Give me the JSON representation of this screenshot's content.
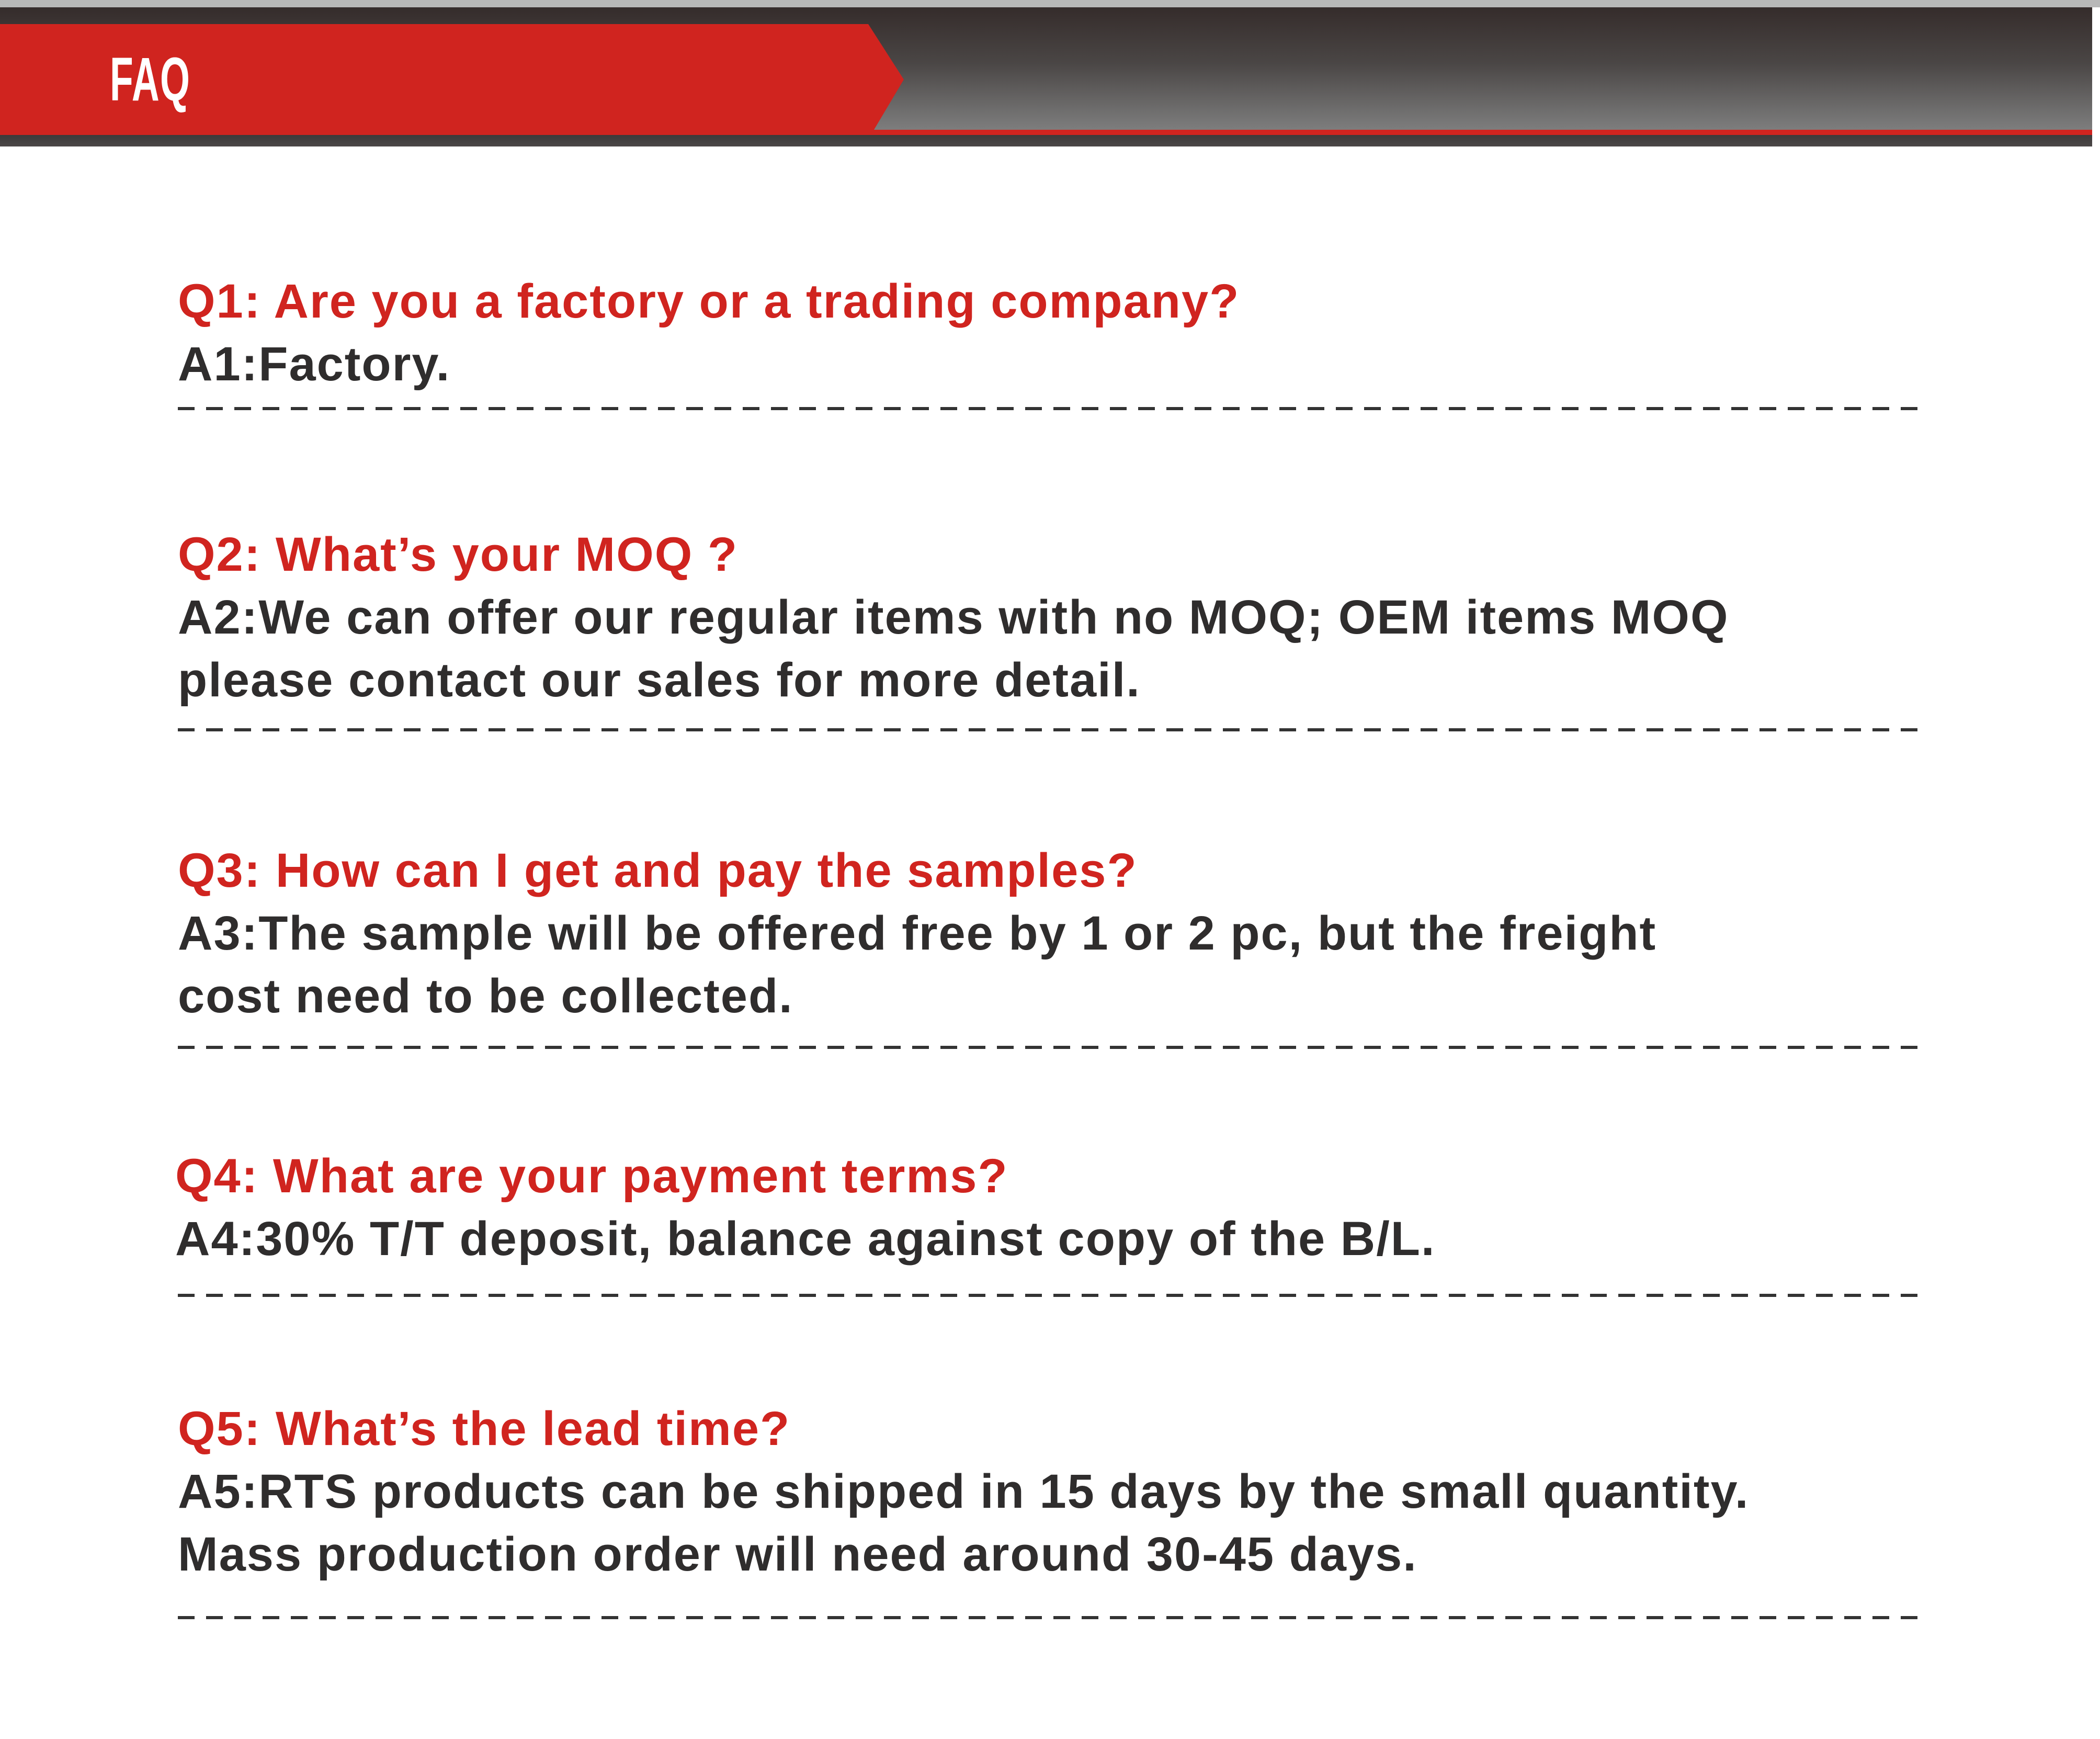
{
  "header": {
    "title": "FAQ"
  },
  "colors": {
    "accent": "#d0241f",
    "text": "#2f2d2d",
    "header_dark": "#4a4645"
  },
  "faq": [
    {
      "question": "Q1: Are you a factory or a trading company?",
      "answer": [
        "A1:Factory."
      ]
    },
    {
      "question": "Q2: What’s your MOQ ?",
      "answer": [
        "A2:We can offer our regular items with no MOQ; OEM items MOQ",
        "please contact our sales for more detail."
      ]
    },
    {
      "question": "Q3: How can I get and pay the samples?",
      "answer": [
        "A3:The sample will be offered free by 1 or 2 pc, but the freight",
        "cost need to be collected."
      ]
    },
    {
      "question": "Q4: What are your payment terms?",
      "answer": [
        "A4:30% T/T deposit, balance against copy of the B/L."
      ]
    },
    {
      "question": "Q5: What’s the lead time?",
      "answer": [
        "A5:RTS products can be shipped in 15 days by the small quantity.",
        "Mass production order will need around 30-45 days."
      ]
    }
  ]
}
